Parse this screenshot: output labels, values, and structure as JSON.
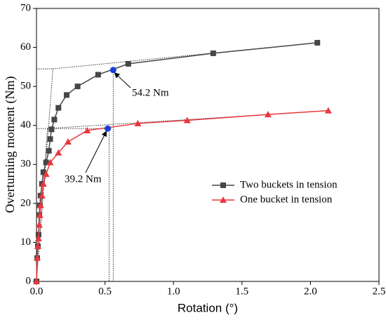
{
  "chart_data": {
    "type": "line",
    "xlabel": "Rotation (°)",
    "ylabel": "Overturning moment (Nm)",
    "xlim": [
      0,
      2.5
    ],
    "ylim": [
      0,
      70
    ],
    "xticks": [
      {
        "value": 0,
        "label": "0.0"
      },
      {
        "value": 0.5,
        "label": "0.5"
      },
      {
        "value": 1,
        "label": "1.0"
      },
      {
        "value": 1.5,
        "label": "1.5"
      },
      {
        "value": 2,
        "label": "2.0"
      },
      {
        "value": 2.5,
        "label": "2.5"
      }
    ],
    "yticks": [
      0,
      10,
      20,
      30,
      40,
      50,
      60,
      70
    ],
    "legend": "center right",
    "series": [
      {
        "name": "Two buckets in tension",
        "color": "#464646",
        "marker": "square",
        "x": [
          0,
          0.005,
          0.01,
          0.015,
          0.02,
          0.025,
          0.03,
          0.04,
          0.05,
          0.07,
          0.09,
          0.1,
          0.11,
          0.13,
          0.16,
          0.22,
          0.3,
          0.45,
          0.67,
          1.29,
          2.05
        ],
        "values": [
          0,
          6,
          9,
          12,
          17,
          19.5,
          22,
          25,
          28,
          30.5,
          33.5,
          36.5,
          39,
          41.5,
          44.5,
          47.8,
          50,
          53,
          55.8,
          58.5,
          61.2
        ]
      },
      {
        "name": "One bucket in tension",
        "color": "#e8383d",
        "marker": "triangle",
        "x": [
          0,
          0.005,
          0.01,
          0.015,
          0.02,
          0.025,
          0.03,
          0.04,
          0.05,
          0.07,
          0.1,
          0.16,
          0.23,
          0.37,
          0.74,
          1.1,
          1.69,
          2.13
        ],
        "values": [
          0,
          6,
          9,
          11,
          14.5,
          17,
          19.5,
          22,
          25,
          27.5,
          30.5,
          33,
          35.8,
          38.7,
          40.5,
          41.3,
          42.8,
          43.8
        ]
      }
    ],
    "guides": [
      {
        "x": [
          0,
          0.12
        ],
        "values": [
          0,
          54.5
        ]
      },
      {
        "x": [
          0,
          0.12
        ],
        "values": [
          54.5,
          54.5
        ]
      },
      {
        "x": [
          0.12,
          2.05
        ],
        "values": [
          54.5,
          61.2
        ]
      },
      {
        "x": [
          0.56,
          0.56
        ],
        "values": [
          54.2,
          0
        ]
      },
      {
        "x": [
          0,
          0.08
        ],
        "values": [
          0,
          39.2
        ]
      },
      {
        "x": [
          0,
          0.55
        ],
        "values": [
          39.2,
          39.2
        ]
      },
      {
        "x": [
          0.08,
          2.13
        ],
        "values": [
          39.2,
          43.8
        ]
      },
      {
        "x": [
          0.53,
          0.53
        ],
        "values": [
          39.2,
          0
        ]
      }
    ],
    "annotations": [
      {
        "text": "54.2 Nm",
        "x": 0.56,
        "y": 54.2,
        "color": "#1a3fd8"
      },
      {
        "text": "39.2 Nm",
        "x": 0.52,
        "y": 39.2,
        "color": "#1a3fd8"
      }
    ]
  }
}
